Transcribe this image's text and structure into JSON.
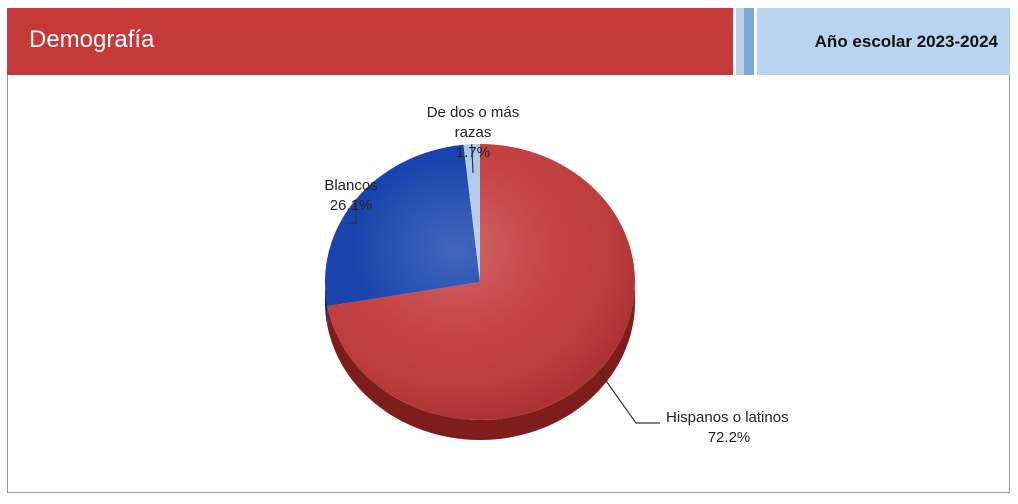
{
  "header": {
    "title": "Demografía",
    "school_year": "Año escolar 2023-2024"
  },
  "colors": {
    "title_bar": "#c53a38",
    "year_bar": "#b9d4ee",
    "stripe_light": "#b8d2ea",
    "stripe_mid": "#7ea8d8"
  },
  "chart_data": {
    "type": "pie",
    "title": "",
    "legend": "none",
    "slices": [
      {
        "label_lines": [
          "Hispanos o latinos"
        ],
        "value_label": "72.2%",
        "value": 72.2,
        "color": "#c3393a",
        "side_color": "#7e1d1c"
      },
      {
        "label_lines": [
          "Blancos"
        ],
        "value_label": "26.1%",
        "value": 26.1,
        "color": "#0f3caa",
        "side_color": "#08246c"
      },
      {
        "label_lines": [
          "De dos o más",
          "razas"
        ],
        "value_label": "1.7%",
        "value": 1.7,
        "color": "#a9c6e8",
        "side_color": "#6f8fb8"
      }
    ]
  }
}
